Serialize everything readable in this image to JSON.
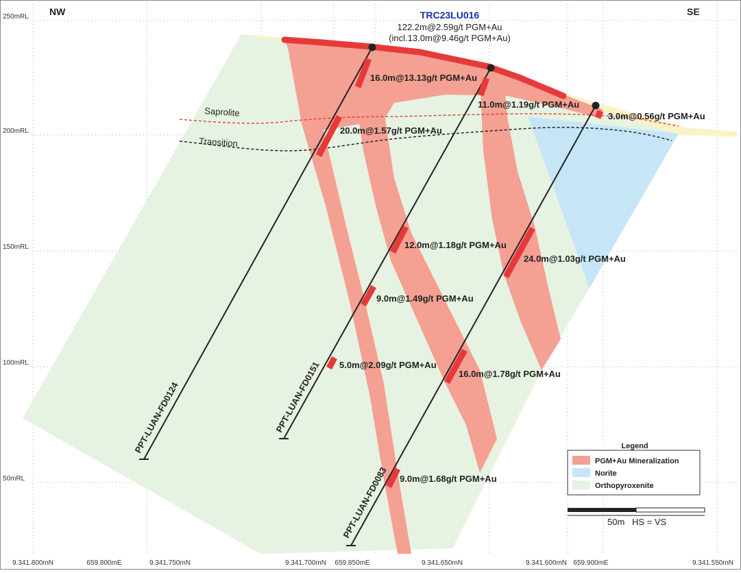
{
  "header": {
    "left": "NW",
    "right": "SE",
    "hole_id": "TRC23LU016"
  },
  "top_intercept": {
    "line1": "122.2m@2.59g/t PGM+Au",
    "line2": "(incl.13.0m@9.46g/t PGM+Au)"
  },
  "rl_labels": [
    "250mRL",
    "200mRL",
    "150mRL",
    "100mRL",
    "50mRL"
  ],
  "bottom_labels": [
    "9.341.800mN",
    "659.800mE",
    "9.341.750mN",
    "9.341.700mN",
    "659.850mE",
    "9.341.650mN",
    "9.341.600mN",
    "659.900mE",
    "9.341.550mN"
  ],
  "contacts": {
    "saprolite": "Saprolite",
    "transition": "Transition"
  },
  "holes": [
    "PPT-LUAN-FD0124",
    "PPT-LUAN-FD0151",
    "PPT-LUAN-FD0083"
  ],
  "intercepts": [
    "16.0m@13.13g/t PGM+Au",
    "11.0m@1.19g/t PGM+Au",
    "3.0m@0.56g/t PGM+Au",
    "20.0m@1.57g/t PGM+Au",
    "12.0m@1.18g/t PGM+Au",
    "24.0m@1.03g/t PGM+Au",
    "9.0m@1.49g/t PGM+Au",
    "5.0m@2.09g/t PGM+Au",
    "16.0m@1.78g/t PGM+Au",
    "9.0m@1.68g/t PGM+Au"
  ],
  "legend": {
    "title": "Legend",
    "items": [
      {
        "label": "PGM+Au Mineralization",
        "color": "#f4a093"
      },
      {
        "label": "Norite",
        "color": "#c6e6f7"
      },
      {
        "label": "Orthopyroxenite",
        "color": "#e6f2e2"
      }
    ]
  },
  "scale": {
    "label": "50m",
    "note": "HS = VS"
  }
}
